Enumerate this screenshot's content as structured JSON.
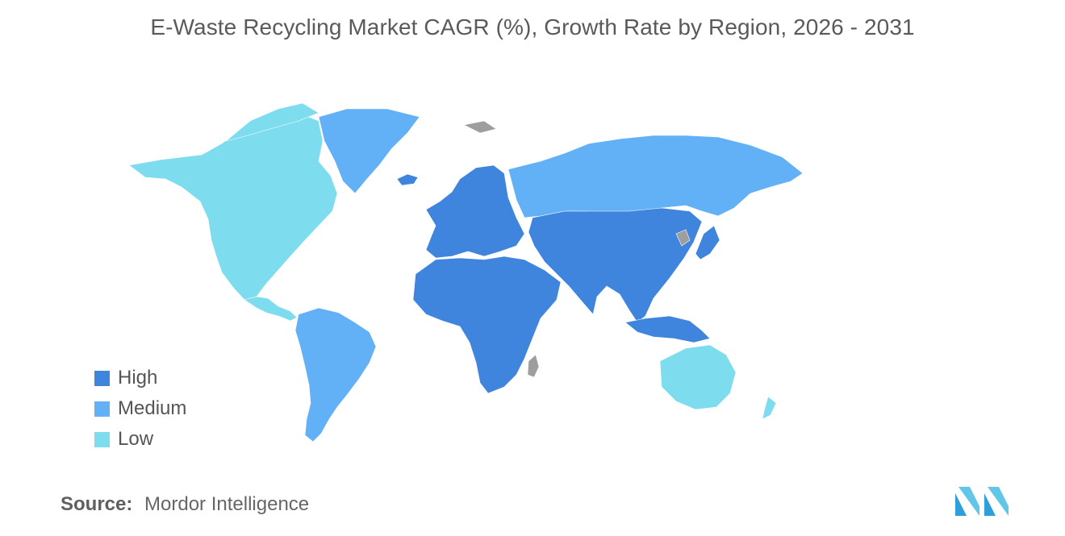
{
  "title": "E-Waste Recycling Market CAGR (%), Growth Rate by Region, 2026 - 2031",
  "legend": [
    {
      "label": "High",
      "color": "#3f85dd"
    },
    {
      "label": "Medium",
      "color": "#62b1f6"
    },
    {
      "label": "Low",
      "color": "#7ddced"
    }
  ],
  "map_regions": [
    {
      "region": "North America",
      "level": "Low"
    },
    {
      "region": "South America",
      "level": "Medium"
    },
    {
      "region": "Greenland",
      "level": "Medium"
    },
    {
      "region": "Europe",
      "level": "High"
    },
    {
      "region": "Russia",
      "level": "Medium"
    },
    {
      "region": "Middle East and Africa",
      "level": "High"
    },
    {
      "region": "Asia",
      "level": "High"
    },
    {
      "region": "Australia and New Zealand",
      "level": "Low"
    },
    {
      "region": "Svalbard / North Korea / Madagascar",
      "level": "No data"
    }
  ],
  "no_data_color": "#9e9e9e",
  "source": {
    "label": "Source:",
    "value": "Mordor Intelligence"
  }
}
